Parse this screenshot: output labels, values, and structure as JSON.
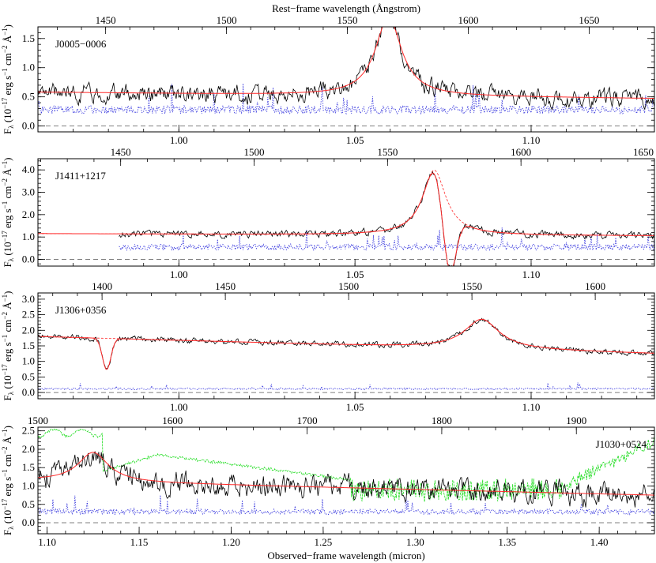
{
  "figure": {
    "top_label": "Rest−frame wavelength (Ångstrom)",
    "bottom_label": "Observed−frame wavelength (micron)",
    "ylabel_prefix": "F",
    "ylabel_sub": "λ",
    "ylabel_main": " (10",
    "ylabel_exp1": "−17",
    "ylabel_mid": " erg s",
    "ylabel_exp2": "−1",
    "ylabel_cm": " cm",
    "ylabel_exp3": "−2",
    "ylabel_ang": " Å",
    "ylabel_exp4": "−1",
    "ylabel_end": ")"
  },
  "colors": {
    "spectrum": "#000000",
    "fit": "#ff2a2a",
    "error": "#3333dd",
    "sky": "#22dd22",
    "zero": "#555555"
  },
  "chart_data": [
    {
      "type": "line",
      "name": "J0005−0006",
      "xlim": [
        0.96,
        1.135
      ],
      "ylim": [
        -0.1,
        1.7
      ],
      "x_ticks": [
        1.0,
        1.05,
        1.1
      ],
      "x_ticklabels": [
        "1.00",
        "1.05",
        "1.10"
      ],
      "y_ticks": [
        0.0,
        0.5,
        1.0,
        1.5
      ],
      "y_ticklabels": [
        "0.0",
        "0.5",
        "1.0",
        "1.5"
      ],
      "rest_ticks": [
        1450,
        1500,
        1550,
        1600,
        1650
      ],
      "rest_range": [
        1422,
        1677
      ],
      "label_pos": "top-left",
      "line": {
        "center": 1.0595,
        "width": 0.0045,
        "peak": 1.35
      },
      "continuum": [
        0.58,
        0.47
      ],
      "noise": 0.12,
      "error": 0.28,
      "absorptions": [],
      "seed": 3
    },
    {
      "type": "line",
      "name": "J1411+1217",
      "xlim": [
        0.96,
        1.135
      ],
      "ylim": [
        -0.3,
        4.5
      ],
      "x_ticks": [
        1.0,
        1.05,
        1.1
      ],
      "x_ticklabels": [
        "1.00",
        "1.05",
        "1.10"
      ],
      "y_ticks": [
        0.0,
        1.0,
        2.0,
        3.0,
        4.0
      ],
      "y_ticklabels": [
        "0.0",
        "1.0",
        "2.0",
        "3.0",
        "4.0"
      ],
      "rest_ticks": [
        1450,
        1500,
        1550,
        1600,
        1650
      ],
      "rest_range": [
        1419,
        1650
      ],
      "label_pos": "top-left",
      "data_start": 0.983,
      "line": {
        "center": 1.0725,
        "width": 0.004,
        "peak": 2.9
      },
      "continuum": [
        1.15,
        1.05
      ],
      "noise": 0.12,
      "error": 0.55,
      "absorptions": [
        {
          "center": 1.0768,
          "width": 0.0018,
          "depth": 2.9
        }
      ],
      "seed": 11
    },
    {
      "type": "line",
      "name": "J1306+0356",
      "xlim": [
        0.96,
        1.135
      ],
      "ylim": [
        -0.2,
        3.2
      ],
      "x_ticks": [
        1.0,
        1.05,
        1.1
      ],
      "x_ticklabels": [
        "1.00",
        "1.05",
        "1.10"
      ],
      "y_ticks": [
        0.0,
        0.5,
        1.0,
        1.5,
        2.0,
        2.5,
        3.0
      ],
      "y_ticklabels": [
        "0.0",
        "0.5",
        "1.0",
        "1.5",
        "2.0",
        "2.5",
        "3.0"
      ],
      "rest_ticks": [
        1400,
        1450,
        1500,
        1550,
        1600
      ],
      "rest_range": [
        1374,
        1624
      ],
      "label_pos": "top-left",
      "line": {
        "center": 1.086,
        "width": 0.006,
        "peak": 0.95
      },
      "continuum": [
        1.8,
        1.25
      ],
      "noise": 0.07,
      "error": 0.12,
      "absorptions": [
        {
          "center": 0.9795,
          "width": 0.0012,
          "depth": 1.0
        }
      ],
      "seed": 19
    },
    {
      "type": "line",
      "name": "J1030+0524",
      "xlim": [
        1.095,
        1.43
      ],
      "ylim": [
        -0.3,
        2.6
      ],
      "x_ticks": [
        1.1,
        1.15,
        1.2,
        1.25,
        1.3,
        1.35,
        1.4
      ],
      "x_ticklabels": [
        "1.10",
        "1.15",
        "1.20",
        "1.25",
        "1.30",
        "1.35",
        "1.40"
      ],
      "y_ticks": [
        0.0,
        0.5,
        1.0,
        1.5,
        2.0,
        2.5
      ],
      "y_ticklabels": [
        "0.0",
        "0.5",
        "1.0",
        "1.5",
        "2.0",
        "2.5"
      ],
      "rest_ticks": [
        1500,
        1600,
        1700,
        1800,
        1900
      ],
      "rest_range": [
        1500,
        1958
      ],
      "label_pos": "top-right",
      "line": {
        "center": 1.125,
        "width": 0.01,
        "peak": 0.8
      },
      "continuum": [
        1.15,
        0.75
      ],
      "noise": 0.25,
      "error": 0.3,
      "absorptions": [],
      "sky": true,
      "seed": 29
    }
  ]
}
